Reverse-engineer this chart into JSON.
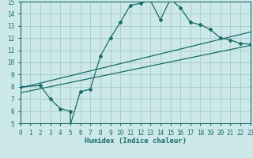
{
  "xlabel": "Humidex (Indice chaleur)",
  "xlim": [
    0,
    23
  ],
  "ylim": [
    5,
    15
  ],
  "xticks": [
    0,
    1,
    2,
    3,
    4,
    5,
    6,
    7,
    8,
    9,
    10,
    11,
    12,
    13,
    14,
    15,
    16,
    17,
    18,
    19,
    20,
    21,
    22,
    23
  ],
  "yticks": [
    5,
    6,
    7,
    8,
    9,
    10,
    11,
    12,
    13,
    14,
    15
  ],
  "bg_color": "#cce8e8",
  "grid_color": "#aacece",
  "line_color": "#1a6b6b",
  "line1_x": [
    0,
    2,
    3,
    4,
    5,
    5,
    6,
    7,
    8,
    9,
    10,
    11,
    12,
    13,
    14,
    15,
    16,
    17,
    18,
    19,
    20,
    21,
    22,
    23
  ],
  "line1_y": [
    8.0,
    8.1,
    7.0,
    6.2,
    6.0,
    4.85,
    7.6,
    7.8,
    10.5,
    12.0,
    13.3,
    14.7,
    14.85,
    15.1,
    13.5,
    15.2,
    14.5,
    13.3,
    13.1,
    12.7,
    12.0,
    11.85,
    11.55,
    11.5
  ],
  "line2_x": [
    0,
    23
  ],
  "line2_y": [
    7.9,
    12.5
  ],
  "line3_x": [
    0,
    23
  ],
  "line3_y": [
    7.5,
    11.4
  ],
  "tick_fontsize": 5.5,
  "xlabel_fontsize": 6.5
}
